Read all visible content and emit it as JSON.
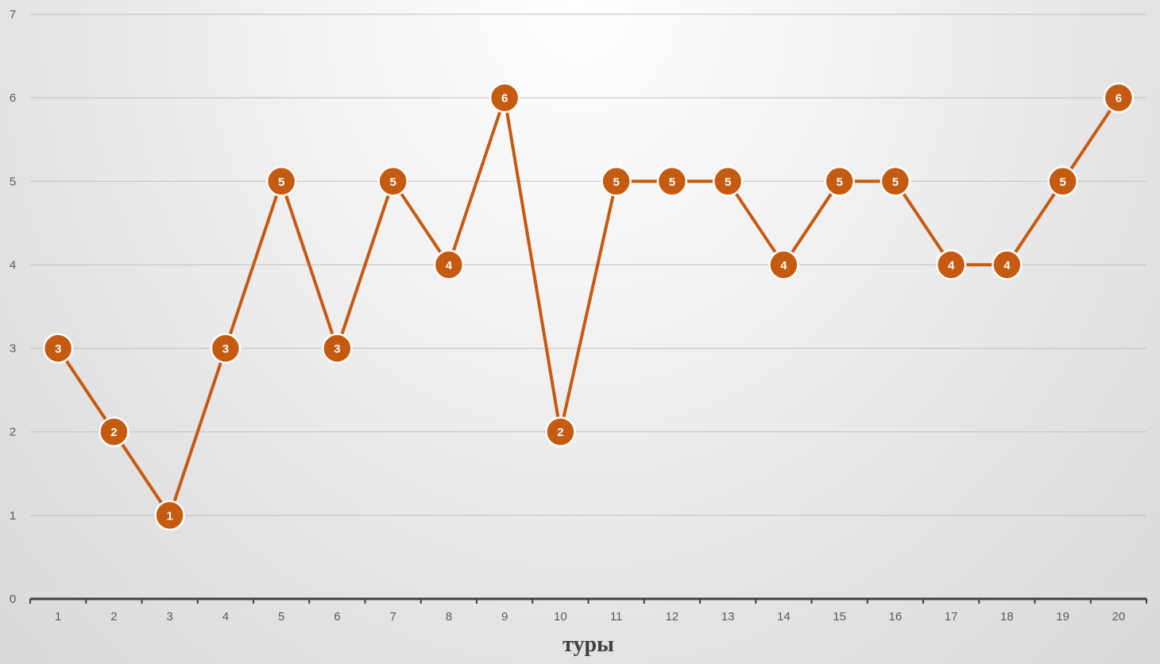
{
  "chart_data": {
    "type": "line",
    "title": "",
    "xlabel": "туры",
    "ylabel": "",
    "x": [
      1,
      2,
      3,
      4,
      5,
      6,
      7,
      8,
      9,
      10,
      11,
      12,
      13,
      14,
      15,
      16,
      17,
      18,
      19,
      20
    ],
    "series": [
      {
        "values": [
          3,
          2,
          1,
          3,
          5,
          3,
          5,
          4,
          6,
          2,
          5,
          5,
          5,
          4,
          5,
          5,
          4,
          4,
          5,
          6
        ],
        "color": "#c55a11",
        "marker": "circle",
        "data_labels": true
      }
    ],
    "ylim": [
      0,
      7
    ],
    "yticks": [
      0,
      1,
      2,
      3,
      4,
      5,
      6,
      7
    ],
    "grid": true,
    "legend": "none"
  }
}
